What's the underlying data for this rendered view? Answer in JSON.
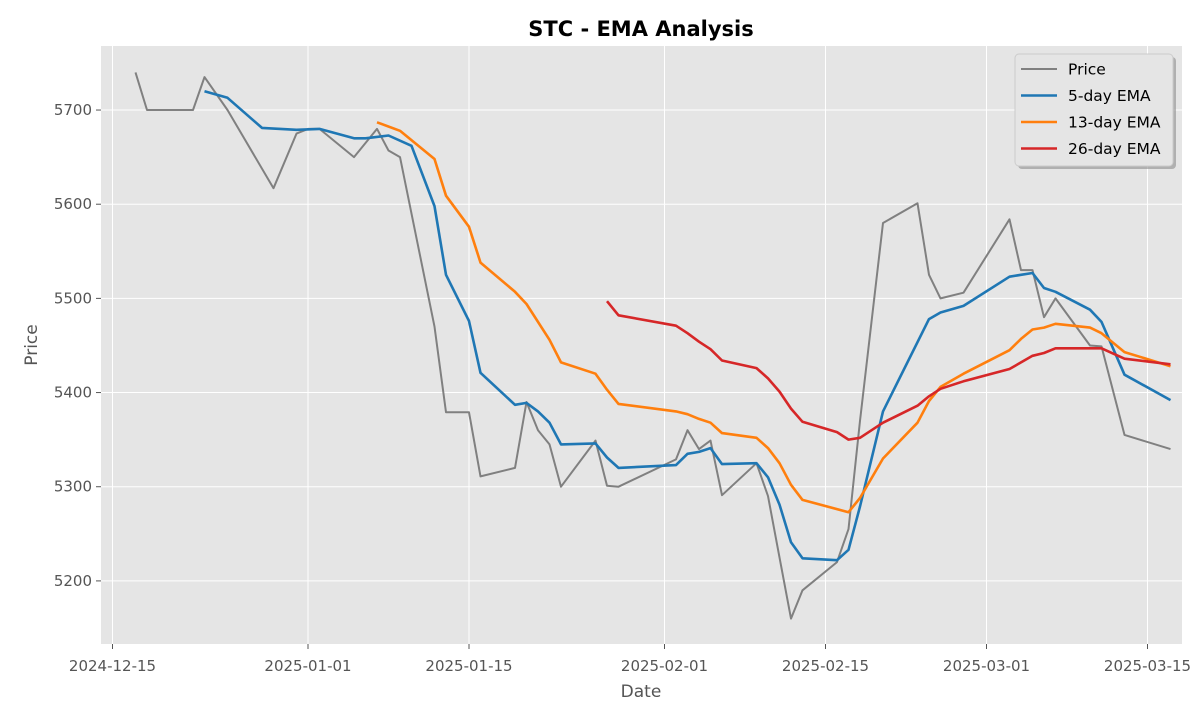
{
  "chart_data": {
    "type": "line",
    "title": "STC - EMA Analysis",
    "xlabel": "Date",
    "ylabel": "Price",
    "x_range": [
      "2024-12-14",
      "2025-03-18"
    ],
    "ylim": [
      5133,
      5768
    ],
    "x_ticks": [
      "2024-12-15",
      "2025-01-01",
      "2025-01-15",
      "2025-02-01",
      "2025-02-15",
      "2025-03-01",
      "2025-03-15"
    ],
    "y_ticks": [
      5200,
      5300,
      5400,
      5500,
      5600,
      5700
    ],
    "grid": true,
    "legend_position": "top-right",
    "series": [
      {
        "name": "Price",
        "color": "#808080",
        "points": [
          [
            "2024-12-17",
            5740
          ],
          [
            "2024-12-18",
            5700
          ],
          [
            "2024-12-22",
            5700
          ],
          [
            "2024-12-23",
            5735
          ],
          [
            "2024-12-25",
            5700
          ],
          [
            "2024-12-29",
            5617
          ],
          [
            "2024-12-31",
            5675
          ],
          [
            "2025-01-01",
            5680
          ],
          [
            "2025-01-02",
            5680
          ],
          [
            "2025-01-05",
            5650
          ],
          [
            "2025-01-07",
            5680
          ],
          [
            "2025-01-08",
            5657
          ],
          [
            "2025-01-09",
            5650
          ],
          [
            "2025-01-12",
            5470
          ],
          [
            "2025-01-13",
            5379
          ],
          [
            "2025-01-15",
            5379
          ],
          [
            "2025-01-16",
            5311
          ],
          [
            "2025-01-19",
            5320
          ],
          [
            "2025-01-20",
            5390
          ],
          [
            "2025-01-21",
            5360
          ],
          [
            "2025-01-22",
            5345
          ],
          [
            "2025-01-23",
            5300
          ],
          [
            "2025-01-26",
            5349
          ],
          [
            "2025-01-27",
            5301
          ],
          [
            "2025-01-28",
            5300
          ],
          [
            "2025-02-02",
            5329
          ],
          [
            "2025-02-03",
            5360
          ],
          [
            "2025-02-04",
            5340
          ],
          [
            "2025-02-05",
            5349
          ],
          [
            "2025-02-06",
            5291
          ],
          [
            "2025-02-09",
            5325
          ],
          [
            "2025-02-10",
            5290
          ],
          [
            "2025-02-11",
            5225
          ],
          [
            "2025-02-12",
            5160
          ],
          [
            "2025-02-13",
            5190
          ],
          [
            "2025-02-16",
            5220
          ],
          [
            "2025-02-17",
            5255
          ],
          [
            "2025-02-18",
            5370
          ],
          [
            "2025-02-20",
            5580
          ],
          [
            "2025-02-23",
            5601
          ],
          [
            "2025-02-24",
            5525
          ],
          [
            "2025-02-25",
            5500
          ],
          [
            "2025-02-27",
            5506
          ],
          [
            "2025-03-03",
            5584
          ],
          [
            "2025-03-04",
            5530
          ],
          [
            "2025-03-05",
            5530
          ],
          [
            "2025-03-06",
            5480
          ],
          [
            "2025-03-07",
            5500
          ],
          [
            "2025-03-10",
            5450
          ],
          [
            "2025-03-11",
            5449
          ],
          [
            "2025-03-13",
            5355
          ],
          [
            "2025-03-17",
            5340
          ]
        ]
      },
      {
        "name": "5-day EMA",
        "color": "#1f77b4",
        "points": [
          [
            "2024-12-23",
            5720
          ],
          [
            "2024-12-25",
            5713
          ],
          [
            "2024-12-28",
            5681
          ],
          [
            "2024-12-31",
            5679
          ],
          [
            "2025-01-02",
            5680
          ],
          [
            "2025-01-05",
            5670
          ],
          [
            "2025-01-06",
            5670
          ],
          [
            "2025-01-08",
            5673
          ],
          [
            "2025-01-10",
            5662
          ],
          [
            "2025-01-12",
            5598
          ],
          [
            "2025-01-13",
            5525
          ],
          [
            "2025-01-15",
            5476
          ],
          [
            "2025-01-16",
            5421
          ],
          [
            "2025-01-19",
            5387
          ],
          [
            "2025-01-20",
            5389
          ],
          [
            "2025-01-21",
            5380
          ],
          [
            "2025-01-22",
            5368
          ],
          [
            "2025-01-23",
            5345
          ],
          [
            "2025-01-26",
            5346
          ],
          [
            "2025-01-27",
            5331
          ],
          [
            "2025-01-28",
            5320
          ],
          [
            "2025-02-02",
            5323
          ],
          [
            "2025-02-03",
            5335
          ],
          [
            "2025-02-04",
            5337
          ],
          [
            "2025-02-05",
            5341
          ],
          [
            "2025-02-06",
            5324
          ],
          [
            "2025-02-09",
            5325
          ],
          [
            "2025-02-10",
            5310
          ],
          [
            "2025-02-11",
            5281
          ],
          [
            "2025-02-12",
            5241
          ],
          [
            "2025-02-13",
            5224
          ],
          [
            "2025-02-16",
            5222
          ],
          [
            "2025-02-17",
            5233
          ],
          [
            "2025-02-18",
            5279
          ],
          [
            "2025-02-20",
            5380
          ],
          [
            "2025-02-24",
            5478
          ],
          [
            "2025-02-25",
            5485
          ],
          [
            "2025-02-27",
            5492
          ],
          [
            "2025-03-03",
            5523
          ],
          [
            "2025-03-04",
            5525
          ],
          [
            "2025-03-05",
            5527
          ],
          [
            "2025-03-06",
            5511
          ],
          [
            "2025-03-07",
            5507
          ],
          [
            "2025-03-10",
            5488
          ],
          [
            "2025-03-11",
            5475
          ],
          [
            "2025-03-13",
            5419
          ],
          [
            "2025-03-17",
            5392
          ]
        ]
      },
      {
        "name": "13-day EMA",
        "color": "#ff7f0e",
        "points": [
          [
            "2025-01-07",
            5687
          ],
          [
            "2025-01-09",
            5678
          ],
          [
            "2025-01-12",
            5648
          ],
          [
            "2025-01-13",
            5609
          ],
          [
            "2025-01-15",
            5576
          ],
          [
            "2025-01-16",
            5538
          ],
          [
            "2025-01-19",
            5507
          ],
          [
            "2025-01-20",
            5494
          ],
          [
            "2025-01-22",
            5456
          ],
          [
            "2025-01-23",
            5432
          ],
          [
            "2025-01-26",
            5420
          ],
          [
            "2025-01-27",
            5403
          ],
          [
            "2025-01-28",
            5388
          ],
          [
            "2025-02-02",
            5380
          ],
          [
            "2025-02-03",
            5377
          ],
          [
            "2025-02-04",
            5372
          ],
          [
            "2025-02-05",
            5368
          ],
          [
            "2025-02-06",
            5357
          ],
          [
            "2025-02-09",
            5352
          ],
          [
            "2025-02-10",
            5341
          ],
          [
            "2025-02-11",
            5325
          ],
          [
            "2025-02-12",
            5302
          ],
          [
            "2025-02-13",
            5286
          ],
          [
            "2025-02-17",
            5273
          ],
          [
            "2025-02-18",
            5288
          ],
          [
            "2025-02-20",
            5330
          ],
          [
            "2025-02-23",
            5368
          ],
          [
            "2025-02-24",
            5391
          ],
          [
            "2025-02-25",
            5406
          ],
          [
            "2025-02-27",
            5420
          ],
          [
            "2025-03-03",
            5445
          ],
          [
            "2025-03-04",
            5457
          ],
          [
            "2025-03-05",
            5467
          ],
          [
            "2025-03-06",
            5469
          ],
          [
            "2025-03-07",
            5473
          ],
          [
            "2025-03-10",
            5469
          ],
          [
            "2025-03-11",
            5463
          ],
          [
            "2025-03-13",
            5443
          ],
          [
            "2025-03-17",
            5428
          ]
        ]
      },
      {
        "name": "26-day EMA",
        "color": "#d62728",
        "points": [
          [
            "2025-01-27",
            5497
          ],
          [
            "2025-01-28",
            5482
          ],
          [
            "2025-02-02",
            5471
          ],
          [
            "2025-02-03",
            5463
          ],
          [
            "2025-02-04",
            5454
          ],
          [
            "2025-02-05",
            5446
          ],
          [
            "2025-02-06",
            5434
          ],
          [
            "2025-02-09",
            5426
          ],
          [
            "2025-02-10",
            5415
          ],
          [
            "2025-02-11",
            5401
          ],
          [
            "2025-02-12",
            5383
          ],
          [
            "2025-02-13",
            5369
          ],
          [
            "2025-02-16",
            5358
          ],
          [
            "2025-02-17",
            5350
          ],
          [
            "2025-02-18",
            5352
          ],
          [
            "2025-02-20",
            5368
          ],
          [
            "2025-02-23",
            5386
          ],
          [
            "2025-02-24",
            5396
          ],
          [
            "2025-02-25",
            5404
          ],
          [
            "2025-02-27",
            5412
          ],
          [
            "2025-03-03",
            5425
          ],
          [
            "2025-03-04",
            5432
          ],
          [
            "2025-03-05",
            5439
          ],
          [
            "2025-03-06",
            5442
          ],
          [
            "2025-03-07",
            5447
          ],
          [
            "2025-03-10",
            5447
          ],
          [
            "2025-03-11",
            5447
          ],
          [
            "2025-03-13",
            5436
          ],
          [
            "2025-03-17",
            5430
          ]
        ]
      }
    ]
  }
}
